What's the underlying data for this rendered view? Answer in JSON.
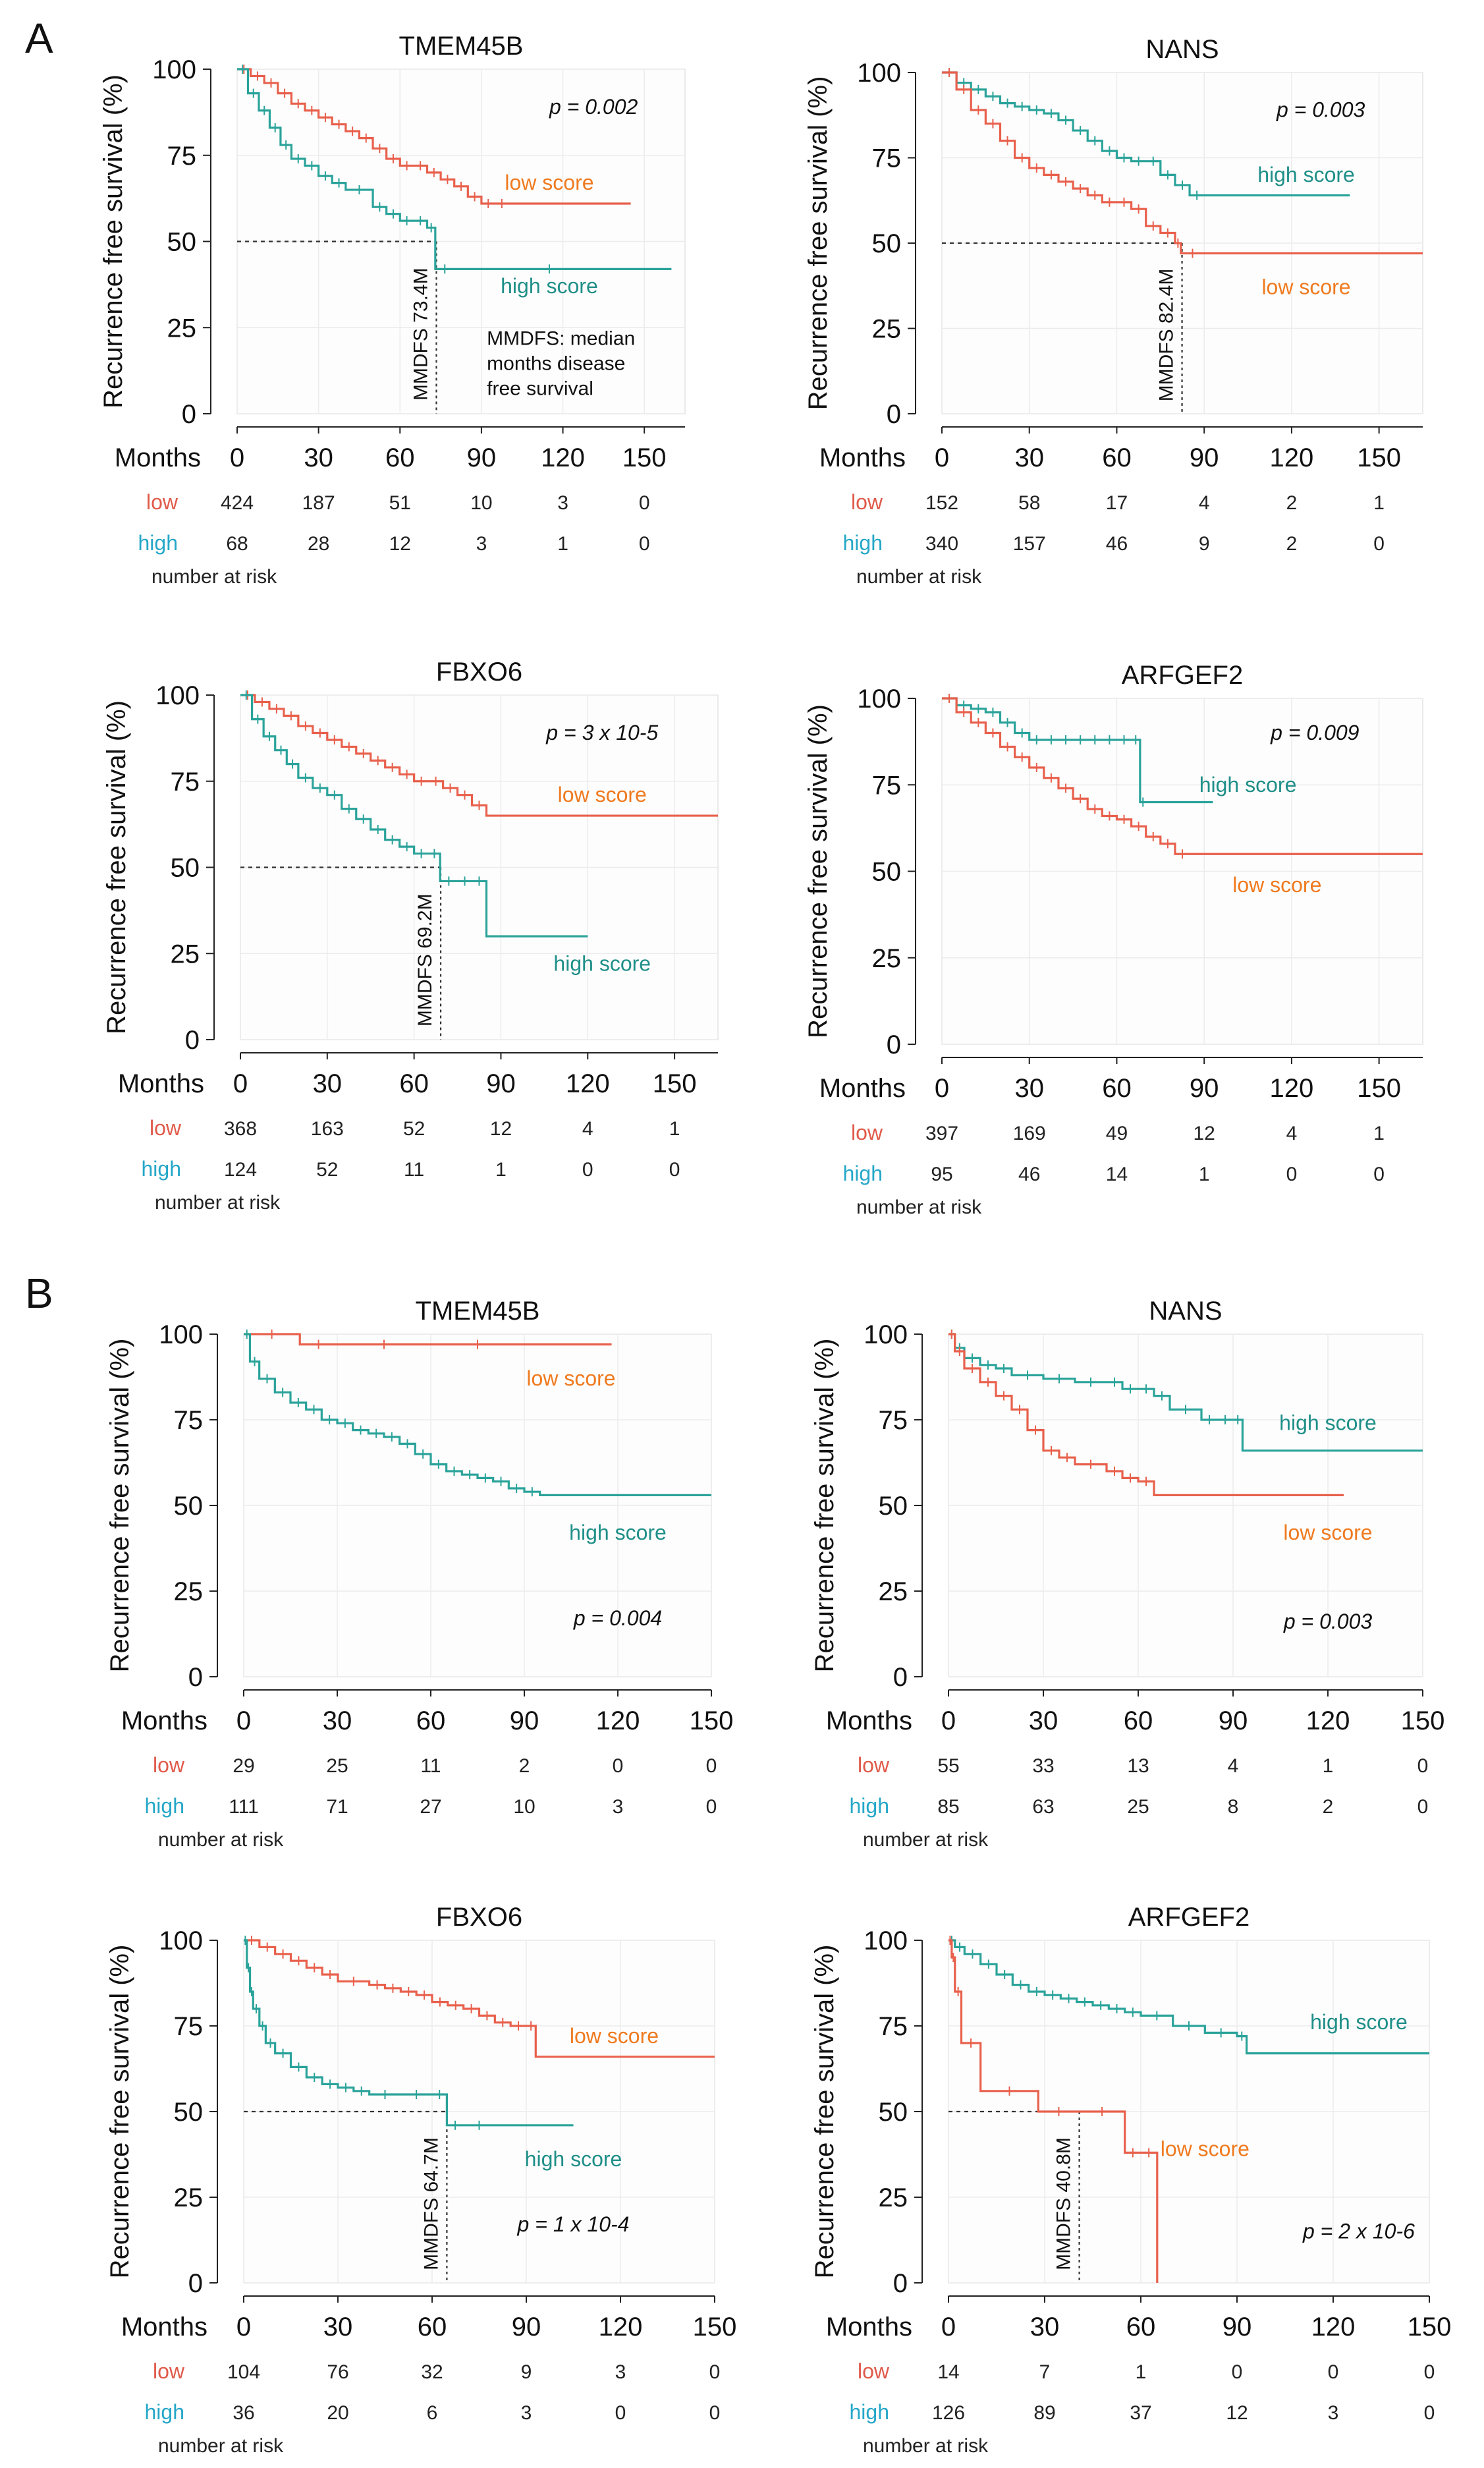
{
  "figure": {
    "panel_letters": [
      "A",
      "B"
    ]
  },
  "common": {
    "ylabel": "Recurrence free survival (%)",
    "xlabel": "Months",
    "risk_caption": "number at risk",
    "ytick_labels": [
      "0",
      "25",
      "50",
      "75",
      "100"
    ],
    "xtick_labels": [
      "0",
      "30",
      "60",
      "90",
      "120",
      "150"
    ],
    "risk_row_labels": [
      "low",
      "high"
    ],
    "colors": {
      "low": "#e8604c",
      "high": "#2aa39a",
      "low_text": "#ef7a1f",
      "high_text": "#1f8f88",
      "risk_low": "#e05a4a",
      "risk_high": "#25a7c8",
      "grid": "#ececec",
      "axis": "#222222"
    }
  },
  "chart_data": [
    {
      "type": "line",
      "panel": "A",
      "title": "TMEM45B",
      "xlabel": "Months",
      "ylabel": "Recurrence free survival (%)",
      "xlim": [
        0,
        165
      ],
      "ylim": [
        0,
        100
      ],
      "pvalue": "p = 0.002",
      "series": [
        {
          "name": "low",
          "label": "low score",
          "x": [
            0,
            5,
            10,
            15,
            20,
            25,
            30,
            35,
            40,
            45,
            50,
            55,
            60,
            65,
            70,
            75,
            80,
            85,
            90,
            95,
            100,
            145
          ],
          "y": [
            100,
            98,
            96,
            93,
            90,
            88,
            86,
            84,
            82,
            80,
            77,
            74,
            72,
            72,
            70,
            68,
            66,
            63,
            61,
            61,
            61,
            61
          ]
        },
        {
          "name": "high",
          "label": "high score",
          "x": [
            0,
            4,
            8,
            12,
            16,
            20,
            25,
            30,
            35,
            40,
            50,
            55,
            60,
            65,
            70,
            73,
            80,
            150,
            160
          ],
          "y": [
            100,
            93,
            88,
            83,
            78,
            74,
            72,
            69,
            67,
            65,
            60,
            58,
            56,
            56,
            54,
            42,
            42,
            42,
            42
          ]
        }
      ],
      "annotations": {
        "mmdfs": "MMDFS 73.4M",
        "mmdfs_x": 73.4,
        "note": [
          "MMDFS: median",
          "months disease",
          "free survival"
        ]
      },
      "risk": {
        "low": [
          "424",
          "187",
          "51",
          "10",
          "3",
          "0"
        ],
        "high": [
          "68",
          "28",
          "12",
          "3",
          "1",
          "0"
        ]
      }
    },
    {
      "type": "line",
      "panel": "A",
      "title": "NANS",
      "xlabel": "Months",
      "ylabel": "Recurrence free survival (%)",
      "xlim": [
        0,
        165
      ],
      "ylim": [
        0,
        100
      ],
      "pvalue": "p = 0.003",
      "series": [
        {
          "name": "high",
          "label": "high score",
          "x": [
            0,
            5,
            10,
            15,
            20,
            25,
            30,
            35,
            40,
            45,
            50,
            55,
            60,
            65,
            70,
            75,
            80,
            85,
            90,
            140
          ],
          "y": [
            100,
            97,
            95,
            93,
            91,
            90,
            89,
            88,
            86,
            83,
            80,
            77,
            75,
            74,
            74,
            70,
            67,
            64,
            64,
            64
          ]
        },
        {
          "name": "low",
          "label": "low score",
          "x": [
            0,
            5,
            10,
            15,
            20,
            25,
            30,
            35,
            40,
            45,
            50,
            55,
            60,
            65,
            70,
            75,
            80,
            82,
            90,
            165
          ],
          "y": [
            100,
            95,
            89,
            85,
            80,
            75,
            72,
            70,
            68,
            66,
            64,
            62,
            62,
            60,
            55,
            53,
            50,
            47,
            47,
            47
          ]
        }
      ],
      "annotations": {
        "mmdfs": "MMDFS 82.4M",
        "mmdfs_x": 82.4
      },
      "risk": {
        "low": [
          "152",
          "58",
          "17",
          "4",
          "2",
          "1"
        ],
        "high": [
          "340",
          "157",
          "46",
          "9",
          "2",
          "0"
        ]
      }
    },
    {
      "type": "line",
      "panel": "A",
      "title": "FBXO6",
      "xlabel": "Months",
      "ylabel": "Recurrence free survival (%)",
      "xlim": [
        0,
        165
      ],
      "ylim": [
        0,
        100
      ],
      "pvalue": "p = 3 x 10-5",
      "series": [
        {
          "name": "low",
          "label": "low score",
          "x": [
            0,
            5,
            10,
            15,
            20,
            25,
            30,
            35,
            40,
            45,
            50,
            55,
            60,
            65,
            70,
            75,
            80,
            85,
            165
          ],
          "y": [
            100,
            98,
            96,
            94,
            91,
            89,
            87,
            85,
            83,
            81,
            79,
            77,
            75,
            75,
            73,
            71,
            68,
            65,
            65
          ]
        },
        {
          "name": "high",
          "label": "high score",
          "x": [
            0,
            4,
            8,
            12,
            16,
            20,
            25,
            30,
            35,
            40,
            45,
            50,
            55,
            60,
            65,
            69,
            75,
            80,
            85,
            120
          ],
          "y": [
            100,
            93,
            88,
            84,
            80,
            76,
            73,
            71,
            67,
            64,
            61,
            58,
            56,
            54,
            54,
            46,
            46,
            46,
            30,
            30
          ]
        }
      ],
      "annotations": {
        "mmdfs": "MMDFS 69.2M",
        "mmdfs_x": 69.2
      },
      "risk": {
        "low": [
          "368",
          "163",
          "52",
          "12",
          "4",
          "1"
        ],
        "high": [
          "124",
          "52",
          "11",
          "1",
          "0",
          "0"
        ]
      }
    },
    {
      "type": "line",
      "panel": "A",
      "title": "ARFGEF2",
      "xlabel": "Months",
      "ylabel": "Recurrence free survival (%)",
      "xlim": [
        0,
        165
      ],
      "ylim": [
        0,
        100
      ],
      "pvalue": "p = 0.009",
      "series": [
        {
          "name": "high",
          "label": "high score",
          "x": [
            0,
            5,
            10,
            15,
            20,
            25,
            30,
            35,
            40,
            45,
            50,
            55,
            60,
            65,
            68,
            70,
            93
          ],
          "y": [
            100,
            98,
            97,
            96,
            93,
            90,
            88,
            88,
            88,
            88,
            88,
            88,
            88,
            88,
            70,
            70,
            70
          ]
        },
        {
          "name": "low",
          "label": "low score",
          "x": [
            0,
            5,
            10,
            15,
            20,
            25,
            30,
            35,
            40,
            45,
            50,
            55,
            60,
            65,
            70,
            75,
            80,
            85,
            165
          ],
          "y": [
            100,
            96,
            93,
            90,
            86,
            83,
            80,
            77,
            74,
            71,
            68,
            66,
            65,
            63,
            60,
            58,
            55,
            55,
            55
          ]
        }
      ],
      "annotations": {},
      "risk": {
        "low": [
          "397",
          "169",
          "49",
          "12",
          "4",
          "1"
        ],
        "high": [
          "95",
          "46",
          "14",
          "1",
          "0",
          "0"
        ]
      }
    },
    {
      "type": "line",
      "panel": "B",
      "title": "TMEM45B",
      "xlabel": "Months",
      "ylabel": "Recurrence free survival (%)",
      "xlim": [
        0,
        150
      ],
      "ylim": [
        0,
        100
      ],
      "pvalue": "p = 0.004",
      "series": [
        {
          "name": "low",
          "label": "low score",
          "x": [
            0,
            18,
            30,
            60,
            90,
            118
          ],
          "y": [
            100,
            97,
            97,
            97,
            97,
            97
          ]
        },
        {
          "name": "high",
          "label": "high score",
          "x": [
            0,
            2,
            5,
            10,
            15,
            20,
            25,
            30,
            35,
            40,
            45,
            50,
            55,
            60,
            65,
            70,
            75,
            80,
            85,
            90,
            95,
            150
          ],
          "y": [
            100,
            92,
            87,
            83,
            80,
            78,
            75,
            74,
            72,
            71,
            70,
            68,
            65,
            62,
            60,
            59,
            58,
            57,
            55,
            54,
            53,
            53
          ]
        }
      ],
      "annotations": {},
      "risk": {
        "low": [
          "29",
          "25",
          "11",
          "2",
          "0",
          "0"
        ],
        "high": [
          "111",
          "71",
          "27",
          "10",
          "3",
          "0"
        ]
      }
    },
    {
      "type": "line",
      "panel": "B",
      "title": "NANS",
      "xlabel": "Months",
      "ylabel": "Recurrence free survival (%)",
      "xlim": [
        0,
        150
      ],
      "ylim": [
        0,
        100
      ],
      "pvalue": "p = 0.003",
      "series": [
        {
          "name": "high",
          "label": "high score",
          "x": [
            0,
            2,
            5,
            10,
            15,
            20,
            30,
            40,
            50,
            55,
            60,
            65,
            70,
            80,
            85,
            90,
            93,
            150
          ],
          "y": [
            100,
            96,
            93,
            91,
            90,
            88,
            87,
            86,
            86,
            84,
            84,
            82,
            78,
            75,
            75,
            75,
            66,
            66
          ]
        },
        {
          "name": "low",
          "label": "low score",
          "x": [
            0,
            2,
            5,
            10,
            15,
            20,
            25,
            30,
            35,
            40,
            50,
            55,
            60,
            65,
            125
          ],
          "y": [
            100,
            95,
            90,
            86,
            82,
            78,
            72,
            66,
            64,
            62,
            60,
            58,
            57,
            53,
            53
          ]
        }
      ],
      "annotations": {},
      "risk": {
        "low": [
          "55",
          "33",
          "13",
          "4",
          "1",
          "0"
        ],
        "high": [
          "85",
          "63",
          "25",
          "8",
          "2",
          "0"
        ]
      }
    },
    {
      "type": "line",
      "panel": "B",
      "title": "FBXO6",
      "xlabel": "Months",
      "ylabel": "Recurrence free survival (%)",
      "xlim": [
        0,
        150
      ],
      "ylim": [
        0,
        100
      ],
      "pvalue": "p = 1 x 10-4",
      "series": [
        {
          "name": "low",
          "label": "low score",
          "x": [
            0,
            5,
            10,
            15,
            20,
            25,
            30,
            40,
            45,
            50,
            55,
            60,
            65,
            70,
            75,
            80,
            85,
            90,
            93,
            150
          ],
          "y": [
            100,
            98,
            96,
            94,
            92,
            90,
            88,
            87,
            86,
            85,
            84,
            82,
            81,
            80,
            78,
            76,
            75,
            75,
            66,
            66
          ]
        },
        {
          "name": "high",
          "label": "high score",
          "x": [
            0,
            1,
            2,
            3,
            5,
            7,
            10,
            15,
            20,
            25,
            30,
            35,
            40,
            50,
            60,
            64.7,
            70,
            80,
            105
          ],
          "y": [
            100,
            92,
            85,
            80,
            75,
            70,
            67,
            63,
            60,
            58,
            57,
            56,
            55,
            55,
            55,
            46,
            46,
            46,
            46
          ]
        }
      ],
      "annotations": {
        "mmdfs": "MMDFS 64.7M",
        "mmdfs_x": 64.7
      },
      "risk": {
        "low": [
          "104",
          "76",
          "32",
          "9",
          "3",
          "0"
        ],
        "high": [
          "36",
          "20",
          "6",
          "3",
          "0",
          "0"
        ]
      }
    },
    {
      "type": "line",
      "panel": "B",
      "title": "ARFGEF2",
      "xlabel": "Months",
      "ylabel": "Recurrence free survival (%)",
      "xlim": [
        0,
        150
      ],
      "ylim": [
        0,
        100
      ],
      "pvalue": "p = 2 x 10-6",
      "series": [
        {
          "name": "high",
          "label": "high score",
          "x": [
            0,
            2,
            5,
            10,
            15,
            20,
            25,
            30,
            35,
            40,
            45,
            50,
            55,
            60,
            70,
            80,
            90,
            93,
            150
          ],
          "y": [
            100,
            98,
            96,
            93,
            90,
            87,
            85,
            84,
            83,
            82,
            81,
            80,
            79,
            78,
            75,
            73,
            72,
            67,
            67
          ]
        },
        {
          "name": "low",
          "label": "low score",
          "x": [
            0,
            1,
            2,
            4,
            10,
            28,
            40.8,
            55,
            60,
            65,
            65.1
          ],
          "y": [
            100,
            95,
            85,
            70,
            56,
            50,
            50,
            38,
            38,
            38,
            0
          ]
        }
      ],
      "annotations": {
        "mmdfs": "MMDFS 40.8M",
        "mmdfs_x": 40.8
      },
      "risk": {
        "low": [
          "14",
          "7",
          "1",
          "0",
          "0",
          "0"
        ],
        "high": [
          "126",
          "89",
          "37",
          "12",
          "3",
          "0"
        ]
      }
    }
  ]
}
